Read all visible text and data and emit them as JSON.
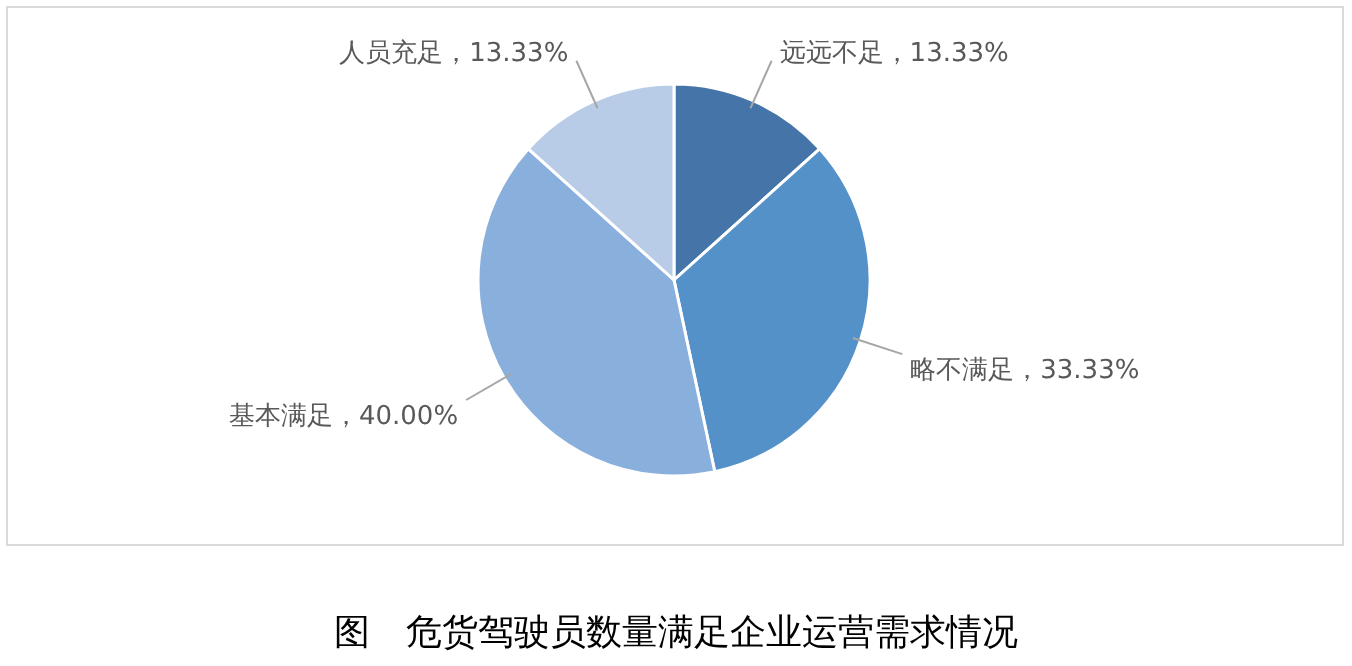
{
  "chart_data": {
    "type": "pie",
    "title": "图　危货驾驶员数量满足企业运营需求情况",
    "categories": [
      "远远不足",
      "略不满足",
      "基本满足",
      "人员充足"
    ],
    "values": [
      13.33,
      33.33,
      40.0,
      13.33
    ],
    "value_labels": [
      "13.33%",
      "33.33%",
      "40.00%",
      "13.33%"
    ],
    "colors": [
      "#4575a8",
      "#5591c9",
      "#89afdd",
      "#b8cce8"
    ],
    "legend": false
  }
}
